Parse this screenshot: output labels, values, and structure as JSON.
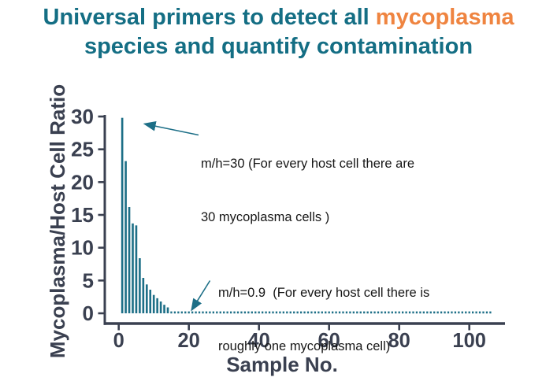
{
  "title": {
    "line1_prefix": "Universal primers to detect all ",
    "line1_highlight": "mycoplasma",
    "line2": "species and quantify contamination",
    "title_color": "#146e84",
    "highlight_color": "#ef8440"
  },
  "chart_data": {
    "type": "bar",
    "title": "",
    "xlabel": "Sample No.",
    "ylabel": "Mycoplasma/Host Cell Ratio",
    "x": [
      1,
      2,
      3,
      4,
      5,
      6,
      7,
      8,
      9,
      10,
      11,
      12,
      13,
      14
    ],
    "values": [
      29.8,
      23.2,
      16.2,
      13.7,
      13.4,
      8.4,
      5.4,
      4.4,
      3.6,
      2.8,
      2.3,
      1.8,
      1.3,
      0.9
    ],
    "dotted_tail": {
      "from_x": 15,
      "to_x": 106,
      "approx_value": 0.9
    },
    "x_ticks": [
      0,
      20,
      40,
      60,
      80,
      100
    ],
    "y_ticks": [
      0,
      5,
      10,
      15,
      20,
      25,
      30
    ],
    "xlim": [
      0,
      110
    ],
    "ylim": [
      0,
      30
    ],
    "grid": false,
    "legend": false,
    "bar_color": "#1d6f87",
    "axis_color": "#3a4050",
    "annotations": [
      {
        "name": "mh30",
        "lines": [
          "m/h=30 (For every host cell there are",
          "30 mycoplasma cells )"
        ],
        "arrow_points_to_sample": 1
      },
      {
        "name": "mh09",
        "lines": [
          "m/h=0.9  (For every host cell there is",
          "roughly one mycoplasma cell)"
        ],
        "arrow_points_to_sample": 21
      }
    ]
  }
}
